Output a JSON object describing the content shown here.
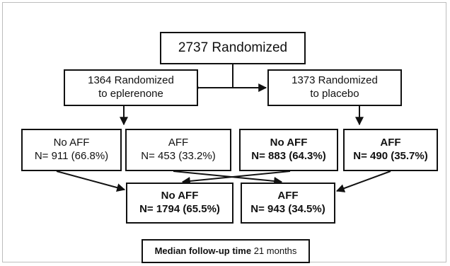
{
  "flowchart": {
    "root": {
      "line1": "2737 Randomized"
    },
    "eplerenone": {
      "line1": "1364 Randomized",
      "line2": "to eplerenone"
    },
    "placebo": {
      "line1": "1373 Randomized",
      "line2": "to placebo"
    },
    "eplerenone_no_aff": {
      "line1": "No AFF",
      "line2": "N= 911 (66.8%)"
    },
    "eplerenone_aff": {
      "line1": "AFF",
      "line2": "N= 453 (33.2%)"
    },
    "placebo_no_aff": {
      "line1": "No AFF",
      "line2": "N= 883 (64.3%)"
    },
    "placebo_aff": {
      "line1": "AFF",
      "line2": "N= 490 (35.7%)"
    },
    "total_no_aff": {
      "line1": "No AFF",
      "line2": "N= 1794 (65.5%)"
    },
    "total_aff": {
      "line1": "AFF",
      "line2": "N= 943 (34.5%)"
    },
    "median": {
      "label": "Median follow-up time",
      "value": "21 months"
    }
  }
}
